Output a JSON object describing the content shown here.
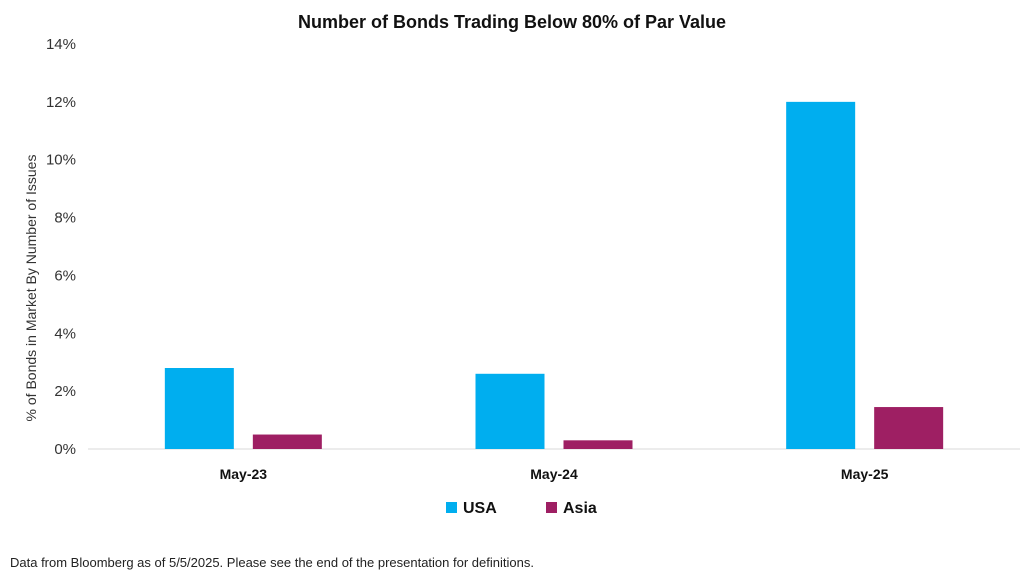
{
  "chart_data": {
    "type": "bar",
    "title": "Number of Bonds Trading Below 80% of Par Value",
    "ylabel": "% of Bonds in Market By Number of Issues",
    "xlabel": "",
    "categories": [
      "May-23",
      "May-24",
      "May-25"
    ],
    "series": [
      {
        "name": "USA",
        "values": [
          2.8,
          2.6,
          12.0
        ]
      },
      {
        "name": "Asia",
        "values": [
          0.5,
          0.3,
          1.45
        ]
      }
    ],
    "ylim": [
      0,
      14
    ],
    "yticks": [
      "0%",
      "2%",
      "4%",
      "6%",
      "8%",
      "10%",
      "12%",
      "14%"
    ],
    "grid": false,
    "legend": "bottom-center"
  },
  "colors": {
    "usa": "#00AEEF",
    "asia": "#9E1F63"
  },
  "footnote": "Data from Bloomberg as of 5/5/2025. Please see the end of the presentation for definitions."
}
